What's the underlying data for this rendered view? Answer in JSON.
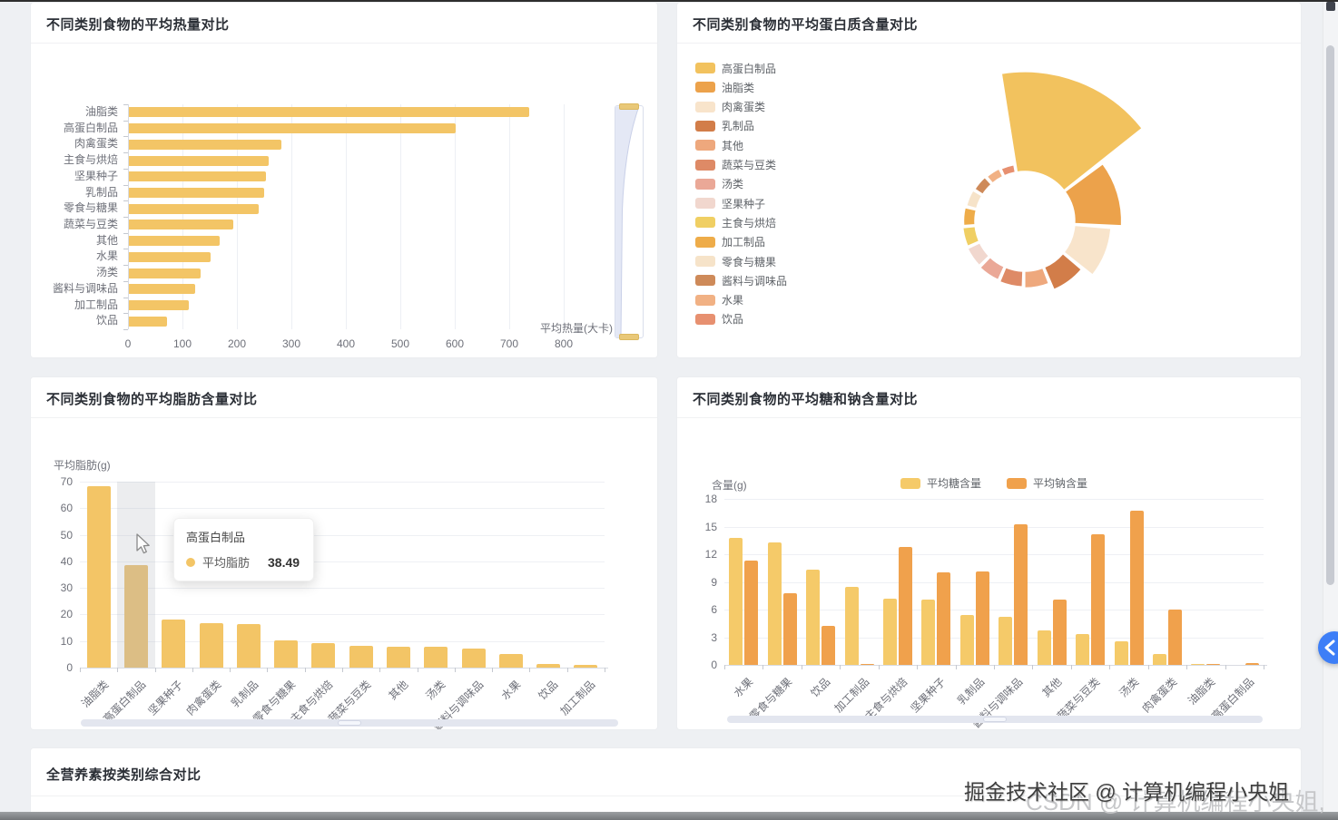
{
  "page": {
    "watermark_primary": "掘金技术社区 @ 计算机编程小央姐",
    "watermark_secondary": "CSDN @ 计算机编程小央姐,",
    "floating_button_icon": "chevron-left",
    "accent_blue": "#3D7EF7"
  },
  "panels": {
    "calorie": {
      "title": "不同类别食物的平均热量对比"
    },
    "protein": {
      "title": "不同类别食物的平均蛋白质含量对比"
    },
    "fat": {
      "title": "不同类别食物的平均脂肪含量对比"
    },
    "sugar_sodium": {
      "title": "不同类别食物的平均糖和钠含量对比"
    },
    "all_nutrients": {
      "title": "全营养素按类别综合对比"
    }
  },
  "chart_data": [
    {
      "id": "calorie",
      "type": "bar",
      "orientation": "horizontal",
      "title": "不同类别食物的平均热量对比",
      "xlabel": "平均热量(大卡)",
      "xlim": [
        0,
        800
      ],
      "xticks": [
        0,
        100,
        200,
        300,
        400,
        500,
        600,
        700,
        800
      ],
      "grid": true,
      "bar_color": "#F3C566",
      "categories": [
        "油脂类",
        "高蛋白制品",
        "肉禽蛋类",
        "主食与烘焙",
        "坚果种子",
        "乳制品",
        "零食与糖果",
        "蔬菜与豆类",
        "其他",
        "水果",
        "汤类",
        "酱料与调味品",
        "加工制品",
        "饮品"
      ],
      "values": [
        735,
        600,
        280,
        257,
        251,
        248,
        238,
        191,
        166,
        150,
        131,
        121,
        110,
        70
      ],
      "datazoom": "vertical-right"
    },
    {
      "id": "protein",
      "type": "pie",
      "subtype": "nightingale-rose",
      "title": "不同类别食物的平均蛋白质含量对比",
      "legend_position": "left",
      "note": "values estimated from sector radius/angle; no numeric labels shown",
      "slices": [
        {
          "label": "高蛋白制品",
          "value": 35,
          "color": "#F2C25E"
        },
        {
          "label": "油脂类",
          "value": 23,
          "color": "#ECA24B"
        },
        {
          "label": "肉禽蛋类",
          "value": 20,
          "color": "#F8E4CB"
        },
        {
          "label": "乳制品",
          "value": 16,
          "color": "#D27D49"
        },
        {
          "label": "其他",
          "value": 13,
          "color": "#EEA87D"
        },
        {
          "label": "蔬菜与豆类",
          "value": 12.5,
          "color": "#DE8A66"
        },
        {
          "label": "汤类",
          "value": 12,
          "color": "#EAA897"
        },
        {
          "label": "坚果种子",
          "value": 11.5,
          "color": "#F1D7CE"
        },
        {
          "label": "主食与烘焙",
          "value": 11,
          "color": "#F0CF63"
        },
        {
          "label": "加工制品",
          "value": 10.5,
          "color": "#EEAC49"
        },
        {
          "label": "零食与糖果",
          "value": 10,
          "color": "#F6E3C9"
        },
        {
          "label": "酱料与调味品",
          "value": 9.5,
          "color": "#CE8A59"
        },
        {
          "label": "水果",
          "value": 9,
          "color": "#F1B184"
        },
        {
          "label": "饮品",
          "value": 8.5,
          "color": "#E79070"
        }
      ]
    },
    {
      "id": "fat",
      "type": "bar",
      "orientation": "vertical",
      "title": "不同类别食物的平均脂肪含量对比",
      "ylabel": "平均脂肪(g)",
      "ylim": [
        0,
        70
      ],
      "yticks": [
        0,
        10,
        20,
        30,
        40,
        50,
        60,
        70
      ],
      "bar_color": "#F3C566",
      "categories": [
        "油脂类",
        "高蛋白制品",
        "坚果种子",
        "肉禽蛋类",
        "乳制品",
        "零食与糖果",
        "主食与烘焙",
        "蔬菜与豆类",
        "其他",
        "汤类",
        "酱料与调味品",
        "水果",
        "饮品",
        "加工制品"
      ],
      "values": [
        68.2,
        38.49,
        18.1,
        16.9,
        16.3,
        10.4,
        9.3,
        8.1,
        7.8,
        7.7,
        7.3,
        5.2,
        1.5,
        0.9
      ],
      "highlight_category": "高蛋白制品",
      "highlight_index": 1,
      "tooltip": {
        "title": "高蛋白制品",
        "series": "平均脂肪",
        "value": "38.49",
        "dot_color": "#F3C566"
      },
      "datazoom": "horizontal-bottom"
    },
    {
      "id": "sugar_sodium",
      "type": "bar",
      "orientation": "vertical",
      "title": "不同类别食物的平均糖和钠含量对比",
      "ylabel": "含量(g)",
      "ylim": [
        0,
        18
      ],
      "yticks": [
        0,
        3,
        6,
        9,
        12,
        15,
        18
      ],
      "legend_position": "top-center",
      "categories": [
        "水果",
        "零食与糖果",
        "饮品",
        "加工制品",
        "主食与烘焙",
        "坚果种子",
        "乳制品",
        "酱料与调味品",
        "其他",
        "蔬菜与豆类",
        "汤类",
        "肉禽蛋类",
        "油脂类",
        "高蛋白制品"
      ],
      "series": [
        {
          "name": "平均糖含量",
          "color": "#F5CA69",
          "values": [
            13.8,
            13.3,
            10.3,
            8.5,
            7.2,
            7.1,
            5.4,
            5.2,
            3.7,
            3.3,
            2.6,
            1.2,
            0.05,
            0
          ]
        },
        {
          "name": "平均钠含量",
          "color": "#F0A14C",
          "values": [
            11.3,
            7.8,
            4.2,
            0.1,
            12.8,
            10.0,
            10.1,
            15.2,
            7.1,
            14.2,
            16.7,
            6.0,
            0.05,
            0.2
          ]
        }
      ],
      "datazoom": "horizontal-bottom"
    }
  ]
}
